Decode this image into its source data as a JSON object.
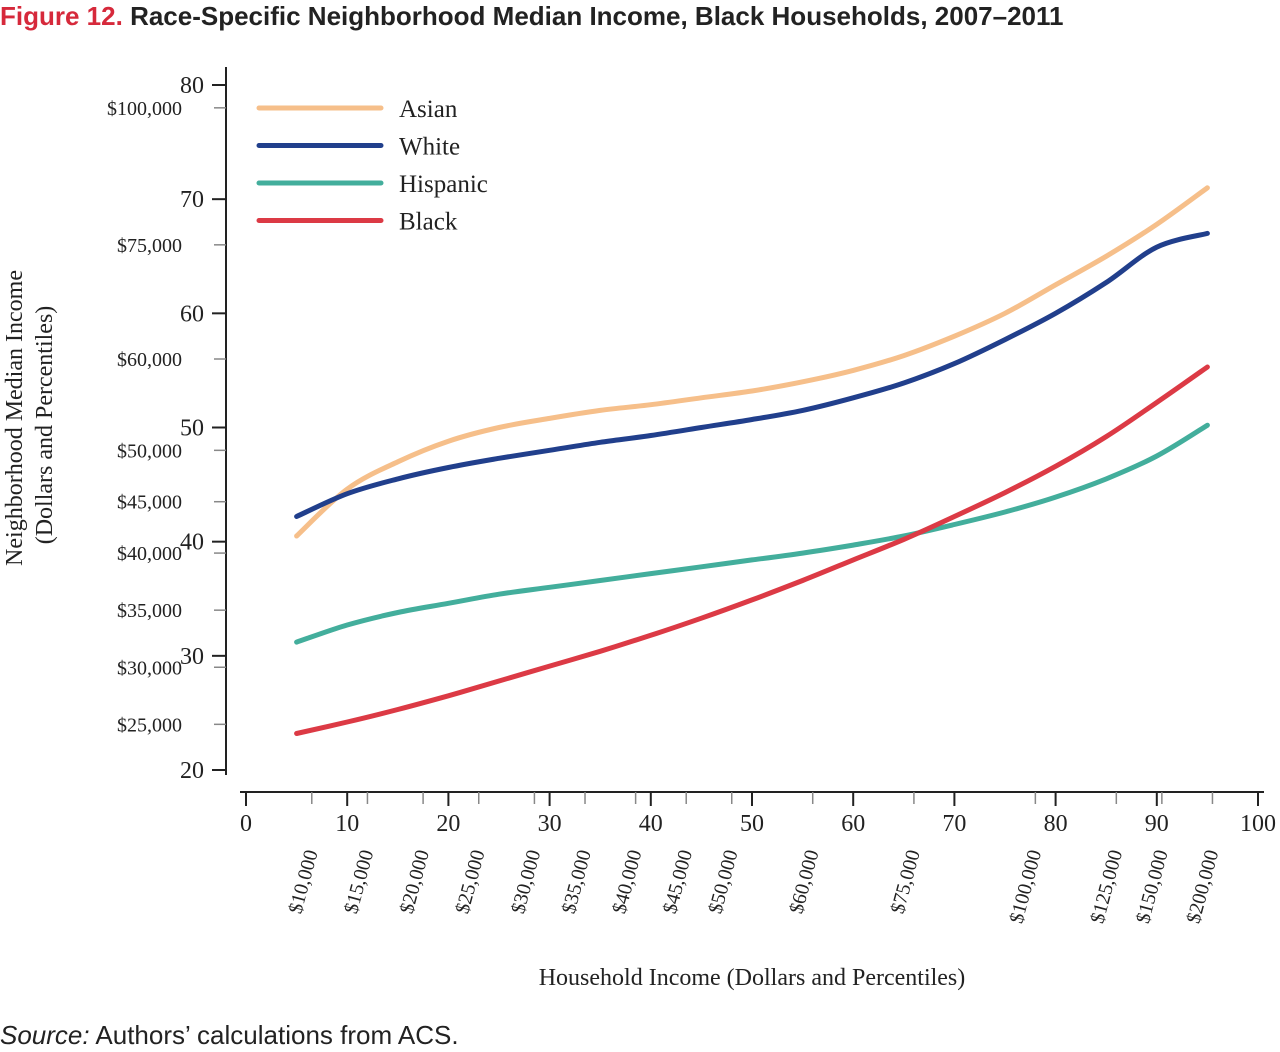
{
  "header": {
    "figure_label": "Figure 12.",
    "title": "Race-Specific Neighborhood Median Income, Black Households, 2007–2011"
  },
  "footer": {
    "source_label": "Source:",
    "source_text": "Authors’ calculations from ACS."
  },
  "colors": {
    "figure_label": "#d6293b",
    "Asian": "#f6bf8a",
    "White": "#213f8c",
    "Hispanic": "#43ae9c",
    "Black": "#dc3a45"
  },
  "chart_data": {
    "type": "line",
    "title": "Race-Specific Neighborhood Median Income, Black Households, 2007–2011",
    "xlabel": "Household Income (Dollars and Percentiles)",
    "ylabel": "Neighborhood Median Income",
    "ylabel_sub": "(Dollars and Percentiles)",
    "xlim": [
      0,
      100
    ],
    "ylim": [
      20,
      80
    ],
    "x_ticks": [
      0,
      10,
      20,
      30,
      40,
      50,
      60,
      70,
      80,
      90,
      100
    ],
    "y_ticks": [
      20,
      30,
      40,
      50,
      60,
      70,
      80
    ],
    "x_dollar_ticks": [
      {
        "label": "$10,000",
        "x": 6.5
      },
      {
        "label": "$15,000",
        "x": 12
      },
      {
        "label": "$20,000",
        "x": 17.5
      },
      {
        "label": "$25,000",
        "x": 23
      },
      {
        "label": "$30,000",
        "x": 28.5
      },
      {
        "label": "$35,000",
        "x": 33.5
      },
      {
        "label": "$40,000",
        "x": 38.5
      },
      {
        "label": "$45,000",
        "x": 43.5
      },
      {
        "label": "$50,000",
        "x": 48
      },
      {
        "label": "$60,000",
        "x": 56
      },
      {
        "label": "$75,000",
        "x": 66
      },
      {
        "label": "$100,000",
        "x": 78
      },
      {
        "label": "$125,000",
        "x": 86
      },
      {
        "label": "$150,000",
        "x": 90.5
      },
      {
        "label": "$200,000",
        "x": 95.5
      }
    ],
    "y_dollar_ticks": [
      {
        "label": "$100,000",
        "y": 78
      },
      {
        "label": "$75,000",
        "y": 66
      },
      {
        "label": "$60,000",
        "y": 56
      },
      {
        "label": "$50,000",
        "y": 48
      },
      {
        "label": "$45,000",
        "y": 43.5
      },
      {
        "label": "$40,000",
        "y": 39
      },
      {
        "label": "$35,000",
        "y": 34
      },
      {
        "label": "$30,000",
        "y": 29
      },
      {
        "label": "$25,000",
        "y": 24
      }
    ],
    "legend_position": "top-left",
    "grid": false,
    "x": [
      5,
      10,
      15,
      20,
      25,
      30,
      35,
      40,
      45,
      50,
      55,
      60,
      65,
      70,
      75,
      80,
      85,
      90,
      95
    ],
    "series": [
      {
        "name": "Asian",
        "values": [
          40.5,
          44.6,
          47.0,
          48.8,
          50.0,
          50.8,
          51.5,
          52.0,
          52.6,
          53.2,
          54.0,
          55.0,
          56.3,
          58.0,
          60.0,
          62.5,
          65.0,
          67.8,
          71.0
        ]
      },
      {
        "name": "White",
        "values": [
          42.2,
          44.2,
          45.5,
          46.5,
          47.3,
          48.0,
          48.7,
          49.3,
          50.0,
          50.7,
          51.5,
          52.6,
          53.9,
          55.6,
          57.7,
          60.0,
          62.7,
          65.8,
          67.0
        ]
      },
      {
        "name": "Hispanic",
        "values": [
          31.2,
          32.7,
          33.8,
          34.6,
          35.4,
          36.0,
          36.6,
          37.2,
          37.8,
          38.4,
          39.0,
          39.7,
          40.5,
          41.5,
          42.6,
          43.9,
          45.5,
          47.5,
          50.2
        ]
      },
      {
        "name": "Black",
        "values": [
          23.2,
          24.2,
          25.3,
          26.5,
          27.8,
          29.1,
          30.4,
          31.8,
          33.3,
          34.9,
          36.6,
          38.4,
          40.2,
          42.2,
          44.3,
          46.6,
          49.2,
          52.2,
          55.3
        ]
      }
    ]
  }
}
